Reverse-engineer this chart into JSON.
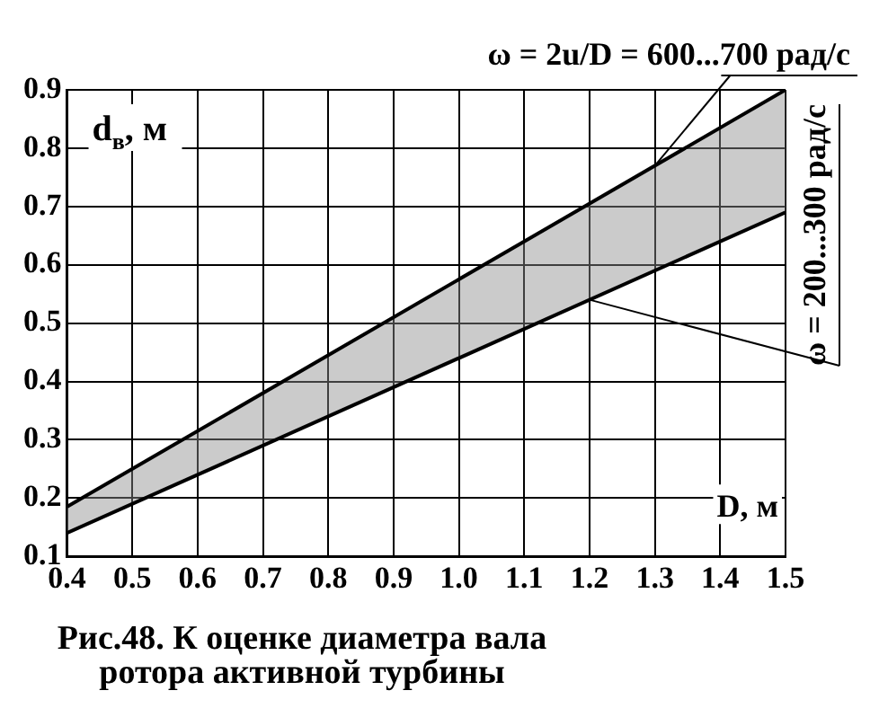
{
  "chart_data": {
    "type": "line",
    "title": "Рис.48. К оценке диаметра вала ротора активной турбины",
    "xlabel": "D, м",
    "ylabel": "d$_{в}$, м",
    "x": [
      0.4,
      1.5
    ],
    "series": [
      {
        "color": "#000000",
        "values": [
          0.185,
          0.9
        ]
      },
      {
        "color": "#000000",
        "values": [
          0.14,
          0.69
        ]
      }
    ],
    "xlim": [
      0.4,
      1.5
    ],
    "xticks": [
      {
        "value": 0.4,
        "label": "0.4"
      },
      {
        "value": 0.5,
        "label": "0.5"
      },
      {
        "value": 0.6,
        "label": "0.6"
      },
      {
        "value": 0.7,
        "label": "0.7"
      },
      {
        "value": 0.8,
        "label": "0.8"
      },
      {
        "value": 0.9,
        "label": "0.9"
      },
      {
        "value": 1.0,
        "label": "1.0"
      },
      {
        "value": 1.1,
        "label": "1.1"
      },
      {
        "value": 1.2,
        "label": "1.2"
      },
      {
        "value": 1.3,
        "label": "1.3"
      },
      {
        "value": 1.4,
        "label": "1.4"
      },
      {
        "value": 1.5,
        "label": "1.5"
      }
    ],
    "ylim": [
      0.1,
      0.9
    ],
    "yticks": [
      0.1,
      0.2,
      0.3,
      0.4,
      0.5,
      0.6,
      0.7,
      0.8,
      0.9
    ],
    "annotations": [
      {
        "text": "ω = 2u/D = 600...700 рад/с",
        "x": 1.3,
        "y": 0.77
      },
      {
        "text": "ω = 200...300 рад/с",
        "x": 1.2,
        "y": 0.54
      }
    ],
    "grid": true,
    "legend": false,
    "marker": "none",
    "line_style": "solid"
  }
}
